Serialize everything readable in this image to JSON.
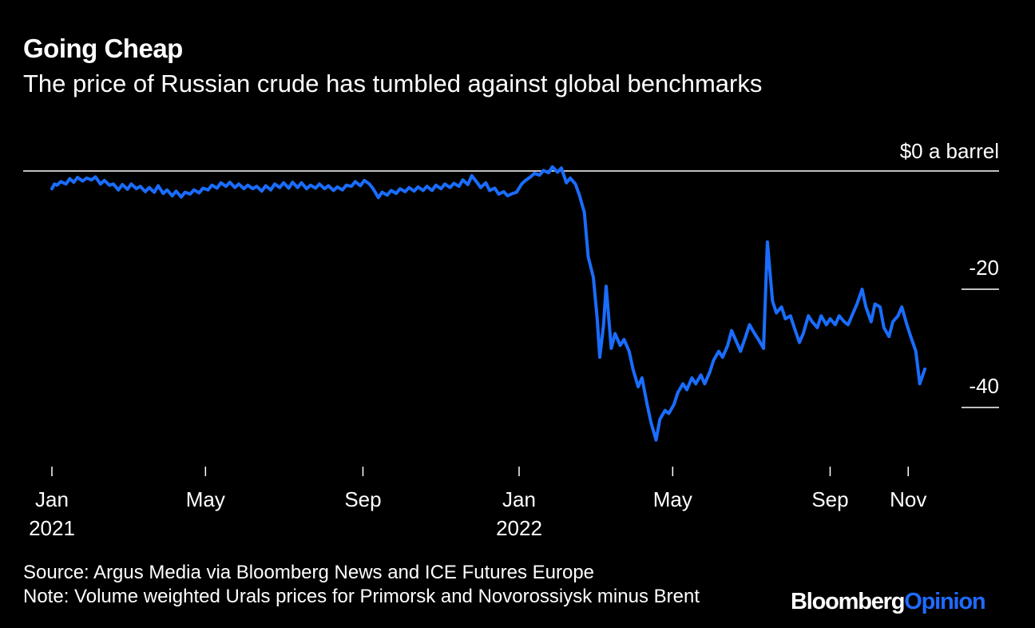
{
  "title": "Going Cheap",
  "subtitle": "The price of Russian crude has tumbled against global benchmarks",
  "source": "Source: Argus Media via Bloomberg News and ICE Futures Europe",
  "note": "Note: Volume weighted Urals prices for Primorsk and Novorossiysk minus Brent",
  "brand": {
    "part1": "Bloomberg",
    "part2": "Opinion"
  },
  "colors": {
    "background": "#000000",
    "line": "#1a6dff",
    "text": "#ffffff",
    "brand_accent": "#1f6bff"
  },
  "chart_data": {
    "type": "line",
    "title": "Going Cheap",
    "subtitle": "The price of Russian crude has tumbled against global benchmarks",
    "ylabel": "",
    "y_unit_label": "$0 a barrel",
    "yticks": [
      {
        "value": 0,
        "label": "$0 a barrel"
      },
      {
        "value": -20,
        "label": "-20"
      },
      {
        "value": -40,
        "label": "-40"
      }
    ],
    "ylim": [
      -46,
      1
    ],
    "xlim": [
      "2021-01-01",
      "2022-12-01"
    ],
    "xticks": [
      {
        "date": "2021-01-01",
        "label": "Jan",
        "year": "2021"
      },
      {
        "date": "2021-05-01",
        "label": "May",
        "year": ""
      },
      {
        "date": "2021-09-01",
        "label": "Sep",
        "year": ""
      },
      {
        "date": "2022-01-01",
        "label": "Jan",
        "year": "2022"
      },
      {
        "date": "2022-05-01",
        "label": "May",
        "year": ""
      },
      {
        "date": "2022-09-01",
        "label": "Sep",
        "year": ""
      },
      {
        "date": "2022-11-01",
        "label": "Nov",
        "year": ""
      }
    ],
    "grid": false,
    "series": [
      {
        "values": [
          [
            "2021-01-01",
            -3.0
          ],
          [
            "2021-01-03",
            -2.2
          ],
          [
            "2021-01-05",
            -2.4
          ],
          [
            "2021-01-08",
            -1.8
          ],
          [
            "2021-01-12",
            -2.2
          ],
          [
            "2021-01-15",
            -1.3
          ],
          [
            "2021-01-18",
            -1.9
          ],
          [
            "2021-01-21",
            -1.1
          ],
          [
            "2021-01-25",
            -1.7
          ],
          [
            "2021-01-28",
            -1.2
          ],
          [
            "2021-02-01",
            -1.5
          ],
          [
            "2021-02-04",
            -1.0
          ],
          [
            "2021-02-08",
            -2.2
          ],
          [
            "2021-02-11",
            -1.6
          ],
          [
            "2021-02-15",
            -2.4
          ],
          [
            "2021-02-18",
            -2.2
          ],
          [
            "2021-02-22",
            -3.2
          ],
          [
            "2021-02-25",
            -2.3
          ],
          [
            "2021-03-01",
            -3.1
          ],
          [
            "2021-03-04",
            -2.2
          ],
          [
            "2021-03-08",
            -3.0
          ],
          [
            "2021-03-11",
            -2.6
          ],
          [
            "2021-03-15",
            -3.5
          ],
          [
            "2021-03-18",
            -2.8
          ],
          [
            "2021-03-22",
            -3.6
          ],
          [
            "2021-03-25",
            -2.5
          ],
          [
            "2021-03-29",
            -3.8
          ],
          [
            "2021-04-01",
            -3.2
          ],
          [
            "2021-04-05",
            -4.2
          ],
          [
            "2021-04-08",
            -3.4
          ],
          [
            "2021-04-12",
            -4.4
          ],
          [
            "2021-04-15",
            -3.6
          ],
          [
            "2021-04-19",
            -3.9
          ],
          [
            "2021-04-22",
            -3.2
          ],
          [
            "2021-04-26",
            -3.7
          ],
          [
            "2021-04-29",
            -2.9
          ],
          [
            "2021-05-03",
            -3.2
          ],
          [
            "2021-05-06",
            -2.4
          ],
          [
            "2021-05-10",
            -2.9
          ],
          [
            "2021-05-13",
            -2.0
          ],
          [
            "2021-05-17",
            -2.6
          ],
          [
            "2021-05-20",
            -1.9
          ],
          [
            "2021-05-24",
            -2.8
          ],
          [
            "2021-05-27",
            -2.2
          ],
          [
            "2021-05-31",
            -3.0
          ],
          [
            "2021-06-03",
            -2.4
          ],
          [
            "2021-06-07",
            -3.0
          ],
          [
            "2021-06-10",
            -2.6
          ],
          [
            "2021-06-14",
            -3.4
          ],
          [
            "2021-06-17",
            -2.5
          ],
          [
            "2021-06-21",
            -3.2
          ],
          [
            "2021-06-24",
            -2.2
          ],
          [
            "2021-06-28",
            -2.8
          ],
          [
            "2021-07-01",
            -2.0
          ],
          [
            "2021-07-05",
            -2.9
          ],
          [
            "2021-07-08",
            -1.9
          ],
          [
            "2021-07-12",
            -2.8
          ],
          [
            "2021-07-15",
            -2.0
          ],
          [
            "2021-07-19",
            -3.0
          ],
          [
            "2021-07-22",
            -2.4
          ],
          [
            "2021-07-26",
            -2.9
          ],
          [
            "2021-07-29",
            -2.2
          ],
          [
            "2021-08-02",
            -3.0
          ],
          [
            "2021-08-05",
            -2.5
          ],
          [
            "2021-08-09",
            -3.3
          ],
          [
            "2021-08-12",
            -2.7
          ],
          [
            "2021-08-16",
            -3.2
          ],
          [
            "2021-08-19",
            -2.4
          ],
          [
            "2021-08-23",
            -2.6
          ],
          [
            "2021-08-26",
            -1.8
          ],
          [
            "2021-08-30",
            -2.5
          ],
          [
            "2021-09-02",
            -1.6
          ],
          [
            "2021-09-06",
            -2.2
          ],
          [
            "2021-09-09",
            -3.0
          ],
          [
            "2021-09-13",
            -4.5
          ],
          [
            "2021-09-16",
            -3.6
          ],
          [
            "2021-09-20",
            -4.1
          ],
          [
            "2021-09-23",
            -3.3
          ],
          [
            "2021-09-27",
            -3.8
          ],
          [
            "2021-09-30",
            -3.0
          ],
          [
            "2021-10-04",
            -3.5
          ],
          [
            "2021-10-07",
            -2.8
          ],
          [
            "2021-10-11",
            -3.4
          ],
          [
            "2021-10-14",
            -2.7
          ],
          [
            "2021-10-18",
            -3.3
          ],
          [
            "2021-10-21",
            -2.6
          ],
          [
            "2021-10-25",
            -3.3
          ],
          [
            "2021-10-28",
            -2.4
          ],
          [
            "2021-11-01",
            -3.0
          ],
          [
            "2021-11-04",
            -2.2
          ],
          [
            "2021-11-08",
            -2.8
          ],
          [
            "2021-11-11",
            -2.1
          ],
          [
            "2021-11-15",
            -2.6
          ],
          [
            "2021-11-18",
            -1.5
          ],
          [
            "2021-11-22",
            -2.3
          ],
          [
            "2021-11-25",
            -0.8
          ],
          [
            "2021-11-29",
            -1.9
          ],
          [
            "2021-12-02",
            -2.8
          ],
          [
            "2021-12-06",
            -2.0
          ],
          [
            "2021-12-09",
            -3.3
          ],
          [
            "2021-12-13",
            -2.9
          ],
          [
            "2021-12-16",
            -3.9
          ],
          [
            "2021-12-20",
            -3.5
          ],
          [
            "2021-12-23",
            -4.2
          ],
          [
            "2021-12-27",
            -3.8
          ],
          [
            "2021-12-30",
            -3.6
          ],
          [
            "2022-01-03",
            -2.2
          ],
          [
            "2022-01-06",
            -1.6
          ],
          [
            "2022-01-10",
            -1.0
          ],
          [
            "2022-01-13",
            -0.4
          ],
          [
            "2022-01-17",
            -0.7
          ],
          [
            "2022-01-20",
            0.1
          ],
          [
            "2022-01-24",
            -0.3
          ],
          [
            "2022-01-27",
            0.7
          ],
          [
            "2022-01-31",
            -0.2
          ],
          [
            "2022-02-03",
            0.5
          ],
          [
            "2022-02-07",
            -2.0
          ],
          [
            "2022-02-10",
            -1.2
          ],
          [
            "2022-02-14",
            -2.2
          ],
          [
            "2022-02-17",
            -4.0
          ],
          [
            "2022-02-21",
            -7.0
          ],
          [
            "2022-02-24",
            -14.5
          ],
          [
            "2022-02-28",
            -18.0
          ],
          [
            "2022-03-03",
            -25.0
          ],
          [
            "2022-03-05",
            -31.5
          ],
          [
            "2022-03-08",
            -26.0
          ],
          [
            "2022-03-10",
            -19.5
          ],
          [
            "2022-03-14",
            -30.0
          ],
          [
            "2022-03-17",
            -27.5
          ],
          [
            "2022-03-21",
            -29.5
          ],
          [
            "2022-03-24",
            -28.5
          ],
          [
            "2022-03-28",
            -30.5
          ],
          [
            "2022-03-31",
            -33.5
          ],
          [
            "2022-04-04",
            -36.5
          ],
          [
            "2022-04-07",
            -35.0
          ],
          [
            "2022-04-11",
            -39.5
          ],
          [
            "2022-04-14",
            -42.5
          ],
          [
            "2022-04-18",
            -45.5
          ],
          [
            "2022-04-21",
            -42.0
          ],
          [
            "2022-04-25",
            -40.5
          ],
          [
            "2022-04-28",
            -41.0
          ],
          [
            "2022-05-02",
            -39.5
          ],
          [
            "2022-05-05",
            -37.5
          ],
          [
            "2022-05-09",
            -36.0
          ],
          [
            "2022-05-12",
            -37.0
          ],
          [
            "2022-05-16",
            -35.0
          ],
          [
            "2022-05-19",
            -36.0
          ],
          [
            "2022-05-23",
            -34.5
          ],
          [
            "2022-05-26",
            -36.0
          ],
          [
            "2022-05-30",
            -34.0
          ],
          [
            "2022-06-02",
            -32.0
          ],
          [
            "2022-06-06",
            -30.5
          ],
          [
            "2022-06-09",
            -31.5
          ],
          [
            "2022-06-13",
            -29.5
          ],
          [
            "2022-06-16",
            -27.0
          ],
          [
            "2022-06-20",
            -29.0
          ],
          [
            "2022-06-23",
            -30.5
          ],
          [
            "2022-06-27",
            -28.0
          ],
          [
            "2022-06-30",
            -26.0
          ],
          [
            "2022-07-04",
            -27.5
          ],
          [
            "2022-07-07",
            -28.5
          ],
          [
            "2022-07-11",
            -30.0
          ],
          [
            "2022-07-14",
            -12.0
          ],
          [
            "2022-07-18",
            -22.0
          ],
          [
            "2022-07-21",
            -24.0
          ],
          [
            "2022-07-25",
            -23.0
          ],
          [
            "2022-07-28",
            -25.0
          ],
          [
            "2022-08-01",
            -24.5
          ],
          [
            "2022-08-04",
            -26.5
          ],
          [
            "2022-08-08",
            -29.0
          ],
          [
            "2022-08-11",
            -27.5
          ],
          [
            "2022-08-15",
            -24.5
          ],
          [
            "2022-08-18",
            -25.5
          ],
          [
            "2022-08-22",
            -26.5
          ],
          [
            "2022-08-25",
            -24.5
          ],
          [
            "2022-08-29",
            -26.0
          ],
          [
            "2022-09-01",
            -25.0
          ],
          [
            "2022-09-05",
            -26.0
          ],
          [
            "2022-09-08",
            -24.5
          ],
          [
            "2022-09-12",
            -25.5
          ],
          [
            "2022-09-15",
            -26.0
          ],
          [
            "2022-09-19",
            -24.0
          ],
          [
            "2022-09-22",
            -22.5
          ],
          [
            "2022-09-26",
            -20.0
          ],
          [
            "2022-09-29",
            -23.0
          ],
          [
            "2022-10-03",
            -25.5
          ],
          [
            "2022-10-06",
            -22.5
          ],
          [
            "2022-10-10",
            -23.0
          ],
          [
            "2022-10-13",
            -26.5
          ],
          [
            "2022-10-17",
            -28.0
          ],
          [
            "2022-10-20",
            -25.5
          ],
          [
            "2022-10-24",
            -24.5
          ],
          [
            "2022-10-27",
            -23.0
          ],
          [
            "2022-10-31",
            -26.0
          ],
          [
            "2022-11-03",
            -28.0
          ],
          [
            "2022-11-07",
            -30.5
          ],
          [
            "2022-11-10",
            -36.0
          ],
          [
            "2022-11-14",
            -33.5
          ]
        ]
      }
    ]
  }
}
